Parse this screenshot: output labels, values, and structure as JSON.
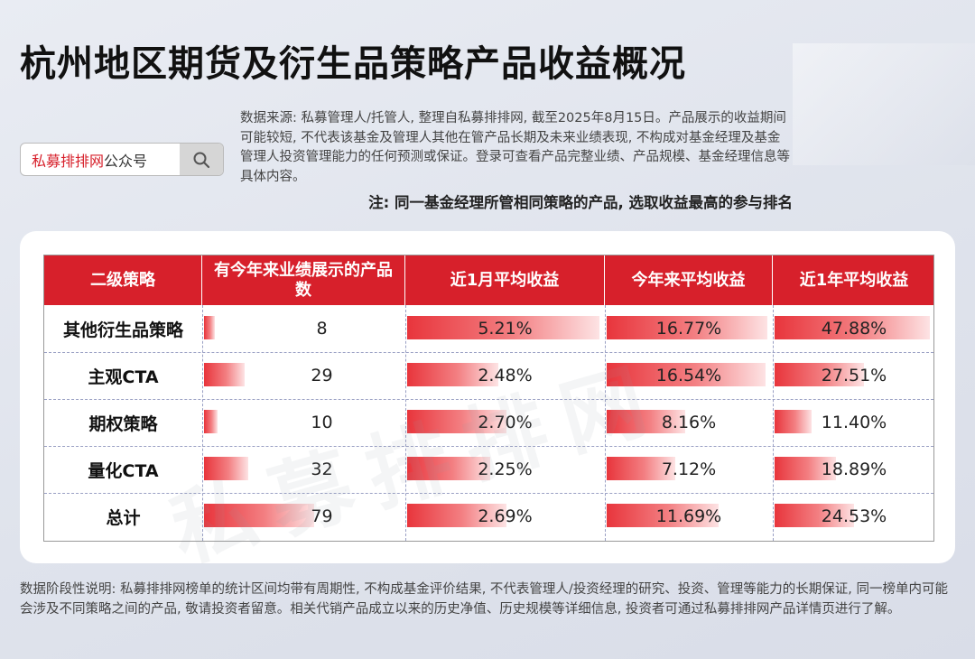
{
  "title": "杭州地区期货及衍生品策略产品收益概况",
  "source_text": "数据来源: 私募管理人/托管人, 整理自私募排排网, 截至2025年8月15日。产品展示的收益期间可能较短, 不代表该基金及管理人其他在管产品长期及未来业绩表现, 不构成对基金经理及基金管理人投资管理能力的任何预测或保证。登录可查看产品完整业绩、产品规模、基金经理信息等具体内容。",
  "note": "注: 同一基金经理所管相同策略的产品, 选取收益最高的参与排名",
  "search": {
    "brand": "私募排排网",
    "suffix": "公众号",
    "icon": "search-icon"
  },
  "watermark": "私募排排网",
  "footer": "数据阶段性说明: 私募排排网榜单的统计区间均带有周期性, 不构成基金评价结果, 不代表管理人/投资经理的研究、投资、管理等能力的长期保证, 同一榜单内可能会涉及不同策略之间的产品, 敬请投资者留意。相关代销产品成立以来的历史净值、历史规模等详细信息, 投资者可通过私募排排网产品详情页进行了解。",
  "colors": {
    "accent": "#d7202b"
  },
  "chart_data": {
    "type": "table",
    "headers": [
      "二级策略",
      "有今年来业绩展示的产品数",
      "近1月平均收益",
      "今年来平均收益",
      "近1年平均收益"
    ],
    "rows": [
      {
        "category": "其他衍生品策略",
        "count": 8,
        "count_label": "8",
        "m1": 5.21,
        "m1_label": "5.21%",
        "ytd": 16.77,
        "ytd_label": "16.77%",
        "y1": 47.88,
        "y1_label": "47.88%"
      },
      {
        "category": "主观CTA",
        "count": 29,
        "count_label": "29",
        "m1": 2.48,
        "m1_label": "2.48%",
        "ytd": 16.54,
        "ytd_label": "16.54%",
        "y1": 27.51,
        "y1_label": "27.51%"
      },
      {
        "category": "期权策略",
        "count": 10,
        "count_label": "10",
        "m1": 2.7,
        "m1_label": "2.70%",
        "ytd": 8.16,
        "ytd_label": "8.16%",
        "y1": 11.4,
        "y1_label": "11.40%"
      },
      {
        "category": "量化CTA",
        "count": 32,
        "count_label": "32",
        "m1": 2.25,
        "m1_label": "2.25%",
        "ytd": 7.12,
        "ytd_label": "7.12%",
        "y1": 18.89,
        "y1_label": "18.89%"
      },
      {
        "category": "总计",
        "count": 79,
        "count_label": "79",
        "m1": 2.69,
        "m1_label": "2.69%",
        "ytd": 11.69,
        "ytd_label": "11.69%",
        "y1": 24.53,
        "y1_label": "24.53%"
      }
    ]
  }
}
